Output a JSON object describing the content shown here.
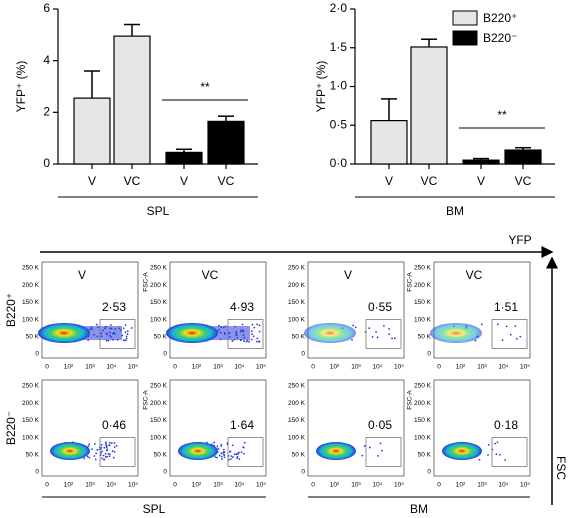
{
  "chart_data": [
    {
      "type": "bar",
      "ylabel": "YFP⁺ (%)",
      "categories": [
        "V",
        "VC",
        "V",
        "VC"
      ],
      "series": [
        {
          "color": "#e6e6e6",
          "values": [
            2.55,
            4.95,
            null,
            null
          ],
          "errors": [
            1.05,
            0.45,
            null,
            null
          ]
        },
        {
          "color": "#000000",
          "values": [
            null,
            null,
            0.45,
            1.65
          ],
          "errors": [
            null,
            null,
            0.12,
            0.2
          ]
        }
      ],
      "ylim": [
        0,
        6
      ],
      "yticks": [
        0,
        2,
        4,
        6
      ],
      "annotation": "**",
      "group_label": "SPL",
      "legend": false
    },
    {
      "type": "bar",
      "ylabel": "YFP⁺ (%)",
      "categories": [
        "V",
        "VC",
        "V",
        "VC"
      ],
      "series": [
        {
          "name": "B220⁺",
          "color": "#e6e6e6",
          "values": [
            0.56,
            1.51,
            null,
            null
          ],
          "errors": [
            0.28,
            0.1,
            null,
            null
          ]
        },
        {
          "name": "B220⁻",
          "color": "#000000",
          "values": [
            null,
            null,
            0.05,
            0.18
          ],
          "errors": [
            null,
            null,
            0.02,
            0.03
          ]
        }
      ],
      "ylim": [
        0,
        2
      ],
      "yticks": [
        {
          "value": 0,
          "label": "0·0"
        },
        {
          "value": 0.5,
          "label": "0·5"
        },
        {
          "value": 1,
          "label": "1·0"
        },
        {
          "value": 1.5,
          "label": "1·5"
        },
        {
          "value": 2,
          "label": "2·0"
        }
      ],
      "annotation": "**",
      "group_label": "BM",
      "legend": "upper right"
    }
  ],
  "flow": {
    "x_label": "YFP",
    "y_label": "FSC",
    "fsc_axis": "FSC-A",
    "column_titles": [
      "V",
      "VC",
      "V",
      "VC"
    ],
    "rows": [
      {
        "label": "B220⁺",
        "gates": [
          "2·53",
          "4·93",
          "0·55",
          "1·51"
        ]
      },
      {
        "label": "B220⁻",
        "gates": [
          "0·46",
          "1·64",
          "0·05",
          "0·18"
        ]
      }
    ],
    "fsc_ticks": [
      "250 K",
      "200 K",
      "150 K",
      "100 K",
      "50 K",
      "0"
    ],
    "yfp_ticks": [
      "0",
      "10²",
      "10³",
      "10⁴",
      "10⁵"
    ],
    "group_labels": [
      "SPL",
      "BM"
    ]
  }
}
